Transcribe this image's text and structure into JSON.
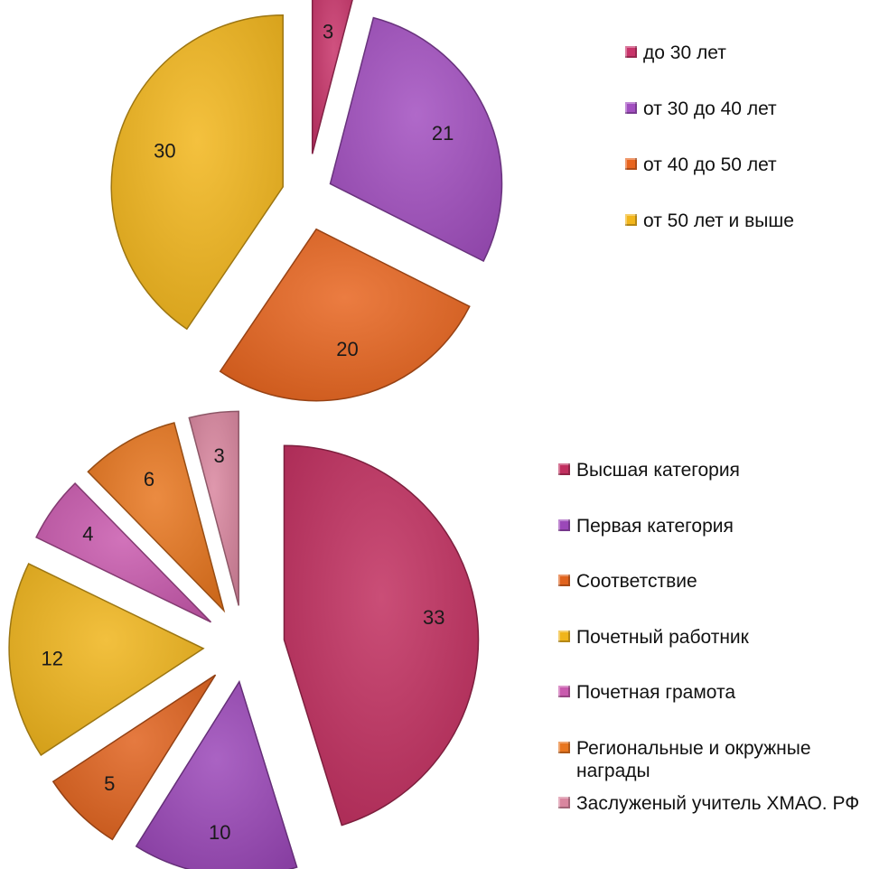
{
  "chart_data": [
    {
      "type": "pie",
      "exploded": true,
      "legend_position": "right",
      "slices": [
        {
          "label": "до 30 лет",
          "value": 3,
          "color": "#C8346A"
        },
        {
          "label": "от 30 до 40 лет",
          "value": 21,
          "color": "#A24FC0"
        },
        {
          "label": "от 40 до 50 лет",
          "value": 20,
          "color": "#E8651F"
        },
        {
          "label": "от 50 лет и выше",
          "value": 30,
          "color": "#F2B61C"
        }
      ]
    },
    {
      "type": "pie",
      "exploded": true,
      "legend_position": "right",
      "slices": [
        {
          "label": "Высшая категория",
          "value": 33,
          "color": "#C12F5F"
        },
        {
          "label": "Первая категория",
          "value": 10,
          "color": "#9B48B8"
        },
        {
          "label": "Соответствие",
          "value": 5,
          "color": "#E0631E"
        },
        {
          "label": "Почетный работник",
          "value": 12,
          "color": "#F0B51C"
        },
        {
          "label": "Почетная грамота",
          "value": 4,
          "color": "#C95AAE"
        },
        {
          "label": "Региональные и окружные награды",
          "value": 6,
          "color": "#E8761F"
        },
        {
          "label": "Заслуженый учитель ХМАО. РФ",
          "value": 3,
          "color": "#D9869F"
        }
      ]
    }
  ]
}
